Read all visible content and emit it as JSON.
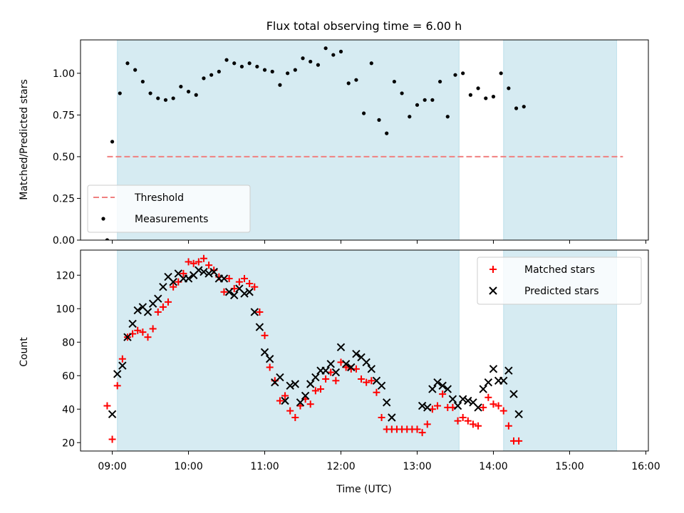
{
  "chart_data": [
    {
      "type": "scatter",
      "title": "Flux total observing time = 6.00 h",
      "xlabel": "",
      "ylabel": "Matched/Predicted stars",
      "xlim": [
        "08:35",
        "16:02"
      ],
      "ylim": [
        0,
        1.2
      ],
      "yticks": [
        0.0,
        0.25,
        0.5,
        0.75,
        1.0
      ],
      "ytick_labels": [
        "0.00",
        "0.25",
        "0.50",
        "0.75",
        "1.00"
      ],
      "shaded_spans": [
        [
          "09:04",
          "13:33"
        ],
        [
          "14:08",
          "15:37"
        ]
      ],
      "threshold": {
        "y": 0.5,
        "x_range": [
          "08:56",
          "15:42"
        ],
        "color": "#f08080",
        "label": "Threshold"
      },
      "legend": {
        "placement": "lower-left",
        "entries": [
          "Threshold",
          "Measurements"
        ]
      },
      "series": [
        {
          "name": "Measurements",
          "marker": "dot",
          "color": "#000000",
          "points": [
            [
              "08:56",
              0.0
            ],
            [
              "09:00",
              0.59
            ],
            [
              "09:06",
              0.88
            ],
            [
              "09:12",
              1.06
            ],
            [
              "09:18",
              1.02
            ],
            [
              "09:24",
              0.95
            ],
            [
              "09:30",
              0.88
            ],
            [
              "09:36",
              0.85
            ],
            [
              "09:42",
              0.84
            ],
            [
              "09:48",
              0.85
            ],
            [
              "09:54",
              0.92
            ],
            [
              "10:00",
              0.89
            ],
            [
              "10:06",
              0.87
            ],
            [
              "10:12",
              0.97
            ],
            [
              "10:18",
              0.99
            ],
            [
              "10:24",
              1.01
            ],
            [
              "10:30",
              1.08
            ],
            [
              "10:36",
              1.06
            ],
            [
              "10:42",
              1.04
            ],
            [
              "10:48",
              1.06
            ],
            [
              "10:54",
              1.04
            ],
            [
              "11:00",
              1.02
            ],
            [
              "11:06",
              1.01
            ],
            [
              "11:12",
              0.93
            ],
            [
              "11:18",
              1.0
            ],
            [
              "11:24",
              1.02
            ],
            [
              "11:30",
              1.09
            ],
            [
              "11:36",
              1.07
            ],
            [
              "11:42",
              1.05
            ],
            [
              "11:48",
              1.15
            ],
            [
              "11:54",
              1.11
            ],
            [
              "12:00",
              1.13
            ],
            [
              "12:06",
              0.94
            ],
            [
              "12:12",
              0.96
            ],
            [
              "12:18",
              0.76
            ],
            [
              "12:24",
              1.06
            ],
            [
              "12:30",
              0.72
            ],
            [
              "12:36",
              0.64
            ],
            [
              "12:42",
              0.95
            ],
            [
              "12:48",
              0.88
            ],
            [
              "12:54",
              0.74
            ],
            [
              "13:00",
              0.81
            ],
            [
              "13:06",
              0.84
            ],
            [
              "13:12",
              0.84
            ],
            [
              "13:18",
              0.95
            ],
            [
              "13:24",
              0.74
            ],
            [
              "13:30",
              0.99
            ],
            [
              "13:36",
              1.0
            ],
            [
              "13:42",
              0.87
            ],
            [
              "13:48",
              0.91
            ],
            [
              "13:54",
              0.85
            ],
            [
              "14:00",
              0.86
            ],
            [
              "14:06",
              1.0
            ],
            [
              "14:12",
              0.91
            ],
            [
              "14:18",
              0.79
            ],
            [
              "14:24",
              0.8
            ]
          ]
        }
      ]
    },
    {
      "type": "scatter",
      "title": "",
      "xlabel": "Time (UTC)",
      "ylabel": "Count",
      "xlim": [
        "08:35",
        "16:02"
      ],
      "ylim": [
        15,
        135
      ],
      "yticks": [
        20,
        40,
        60,
        80,
        100,
        120
      ],
      "xticks": [
        "09:00",
        "10:00",
        "11:00",
        "12:00",
        "13:00",
        "14:00",
        "15:00",
        "16:00"
      ],
      "shaded_spans": [
        [
          "09:04",
          "13:33"
        ],
        [
          "14:08",
          "15:37"
        ]
      ],
      "legend": {
        "placement": "upper-right",
        "entries": [
          "Matched stars",
          "Predicted stars"
        ]
      },
      "series": [
        {
          "name": "Matched stars",
          "marker": "plus",
          "color": "#ff0000",
          "points": [
            [
              "08:56",
              42
            ],
            [
              "09:00",
              22
            ],
            [
              "09:04",
              54
            ],
            [
              "09:08",
              70
            ],
            [
              "09:12",
              83
            ],
            [
              "09:16",
              85
            ],
            [
              "09:20",
              87
            ],
            [
              "09:24",
              86
            ],
            [
              "09:28",
              83
            ],
            [
              "09:32",
              88
            ],
            [
              "09:36",
              98
            ],
            [
              "09:40",
              101
            ],
            [
              "09:44",
              104
            ],
            [
              "09:48",
              113
            ],
            [
              "09:52",
              116
            ],
            [
              "09:56",
              121
            ],
            [
              "10:00",
              128
            ],
            [
              "10:04",
              127
            ],
            [
              "10:08",
              128
            ],
            [
              "10:12",
              130
            ],
            [
              "10:16",
              126
            ],
            [
              "10:20",
              123
            ],
            [
              "10:24",
              119
            ],
            [
              "10:28",
              110
            ],
            [
              "10:32",
              118
            ],
            [
              "10:36",
              112
            ],
            [
              "10:40",
              116
            ],
            [
              "10:44",
              118
            ],
            [
              "10:48",
              115
            ],
            [
              "10:52",
              113
            ],
            [
              "10:56",
              98
            ],
            [
              "11:00",
              84
            ],
            [
              "11:04",
              65
            ],
            [
              "11:08",
              57
            ],
            [
              "11:12",
              45
            ],
            [
              "11:16",
              48
            ],
            [
              "11:20",
              39
            ],
            [
              "11:24",
              35
            ],
            [
              "11:28",
              42
            ],
            [
              "11:32",
              46
            ],
            [
              "11:36",
              43
            ],
            [
              "11:40",
              51
            ],
            [
              "11:44",
              52
            ],
            [
              "11:48",
              58
            ],
            [
              "11:52",
              62
            ],
            [
              "11:56",
              57
            ],
            [
              "12:00",
              68
            ],
            [
              "12:04",
              65
            ],
            [
              "12:08",
              64
            ],
            [
              "12:12",
              64
            ],
            [
              "12:16",
              58
            ],
            [
              "12:20",
              56
            ],
            [
              "12:24",
              57
            ],
            [
              "12:28",
              50
            ],
            [
              "12:32",
              35
            ],
            [
              "12:36",
              28
            ],
            [
              "12:40",
              28
            ],
            [
              "12:44",
              28
            ],
            [
              "12:48",
              28
            ],
            [
              "12:52",
              28
            ],
            [
              "12:56",
              28
            ],
            [
              "13:00",
              28
            ],
            [
              "13:04",
              26
            ],
            [
              "13:08",
              31
            ],
            [
              "13:12",
              40
            ],
            [
              "13:16",
              42
            ],
            [
              "13:20",
              49
            ],
            [
              "13:24",
              41
            ],
            [
              "13:28",
              41
            ],
            [
              "13:32",
              33
            ],
            [
              "13:36",
              35
            ],
            [
              "13:40",
              33
            ],
            [
              "13:44",
              31
            ],
            [
              "13:48",
              30
            ],
            [
              "13:52",
              41
            ],
            [
              "13:56",
              47
            ],
            [
              "14:00",
              43
            ],
            [
              "14:04",
              42
            ],
            [
              "14:08",
              39
            ],
            [
              "14:12",
              30
            ],
            [
              "14:16",
              21
            ],
            [
              "14:20",
              21
            ]
          ]
        },
        {
          "name": "Predicted stars",
          "marker": "x",
          "color": "#000000",
          "points": [
            [
              "09:00",
              37
            ],
            [
              "09:04",
              61
            ],
            [
              "09:08",
              66
            ],
            [
              "09:12",
              83
            ],
            [
              "09:16",
              91
            ],
            [
              "09:20",
              99
            ],
            [
              "09:24",
              101
            ],
            [
              "09:28",
              98
            ],
            [
              "09:32",
              103
            ],
            [
              "09:36",
              106
            ],
            [
              "09:40",
              113
            ],
            [
              "09:44",
              119
            ],
            [
              "09:48",
              116
            ],
            [
              "09:52",
              121
            ],
            [
              "09:56",
              118
            ],
            [
              "10:00",
              118
            ],
            [
              "10:04",
              120
            ],
            [
              "10:08",
              123
            ],
            [
              "10:12",
              122
            ],
            [
              "10:16",
              121
            ],
            [
              "10:20",
              122
            ],
            [
              "10:24",
              118
            ],
            [
              "10:28",
              118
            ],
            [
              "10:32",
              110
            ],
            [
              "10:36",
              108
            ],
            [
              "10:40",
              112
            ],
            [
              "10:44",
              109
            ],
            [
              "10:48",
              110
            ],
            [
              "10:52",
              98
            ],
            [
              "10:56",
              89
            ],
            [
              "11:00",
              74
            ],
            [
              "11:04",
              70
            ],
            [
              "11:08",
              56
            ],
            [
              "11:12",
              59
            ],
            [
              "11:16",
              45
            ],
            [
              "11:20",
              54
            ],
            [
              "11:24",
              55
            ],
            [
              "11:28",
              44
            ],
            [
              "11:32",
              48
            ],
            [
              "11:36",
              55
            ],
            [
              "11:40",
              59
            ],
            [
              "11:44",
              63
            ],
            [
              "11:48",
              63
            ],
            [
              "11:52",
              67
            ],
            [
              "11:56",
              62
            ],
            [
              "12:00",
              77
            ],
            [
              "12:04",
              67
            ],
            [
              "12:08",
              65
            ],
            [
              "12:12",
              73
            ],
            [
              "12:16",
              71
            ],
            [
              "12:20",
              68
            ],
            [
              "12:24",
              64
            ],
            [
              "12:28",
              57
            ],
            [
              "12:32",
              54
            ],
            [
              "12:36",
              44
            ],
            [
              "12:40",
              35
            ],
            [
              "13:04",
              42
            ],
            [
              "13:08",
              41
            ],
            [
              "13:12",
              52
            ],
            [
              "13:16",
              56
            ],
            [
              "13:20",
              54
            ],
            [
              "13:24",
              52
            ],
            [
              "13:28",
              46
            ],
            [
              "13:32",
              42
            ],
            [
              "13:36",
              46
            ],
            [
              "13:40",
              45
            ],
            [
              "13:44",
              44
            ],
            [
              "13:48",
              41
            ],
            [
              "13:52",
              52
            ],
            [
              "13:56",
              56
            ],
            [
              "14:00",
              64
            ],
            [
              "14:04",
              57
            ],
            [
              "14:08",
              57
            ],
            [
              "14:12",
              63
            ],
            [
              "14:16",
              49
            ],
            [
              "14:20",
              37
            ]
          ]
        }
      ]
    }
  ],
  "colors": {
    "shade": "#add8e6",
    "threshold": "#f08080",
    "matched": "#ff0000",
    "predicted": "#000000",
    "measurement": "#000000"
  }
}
